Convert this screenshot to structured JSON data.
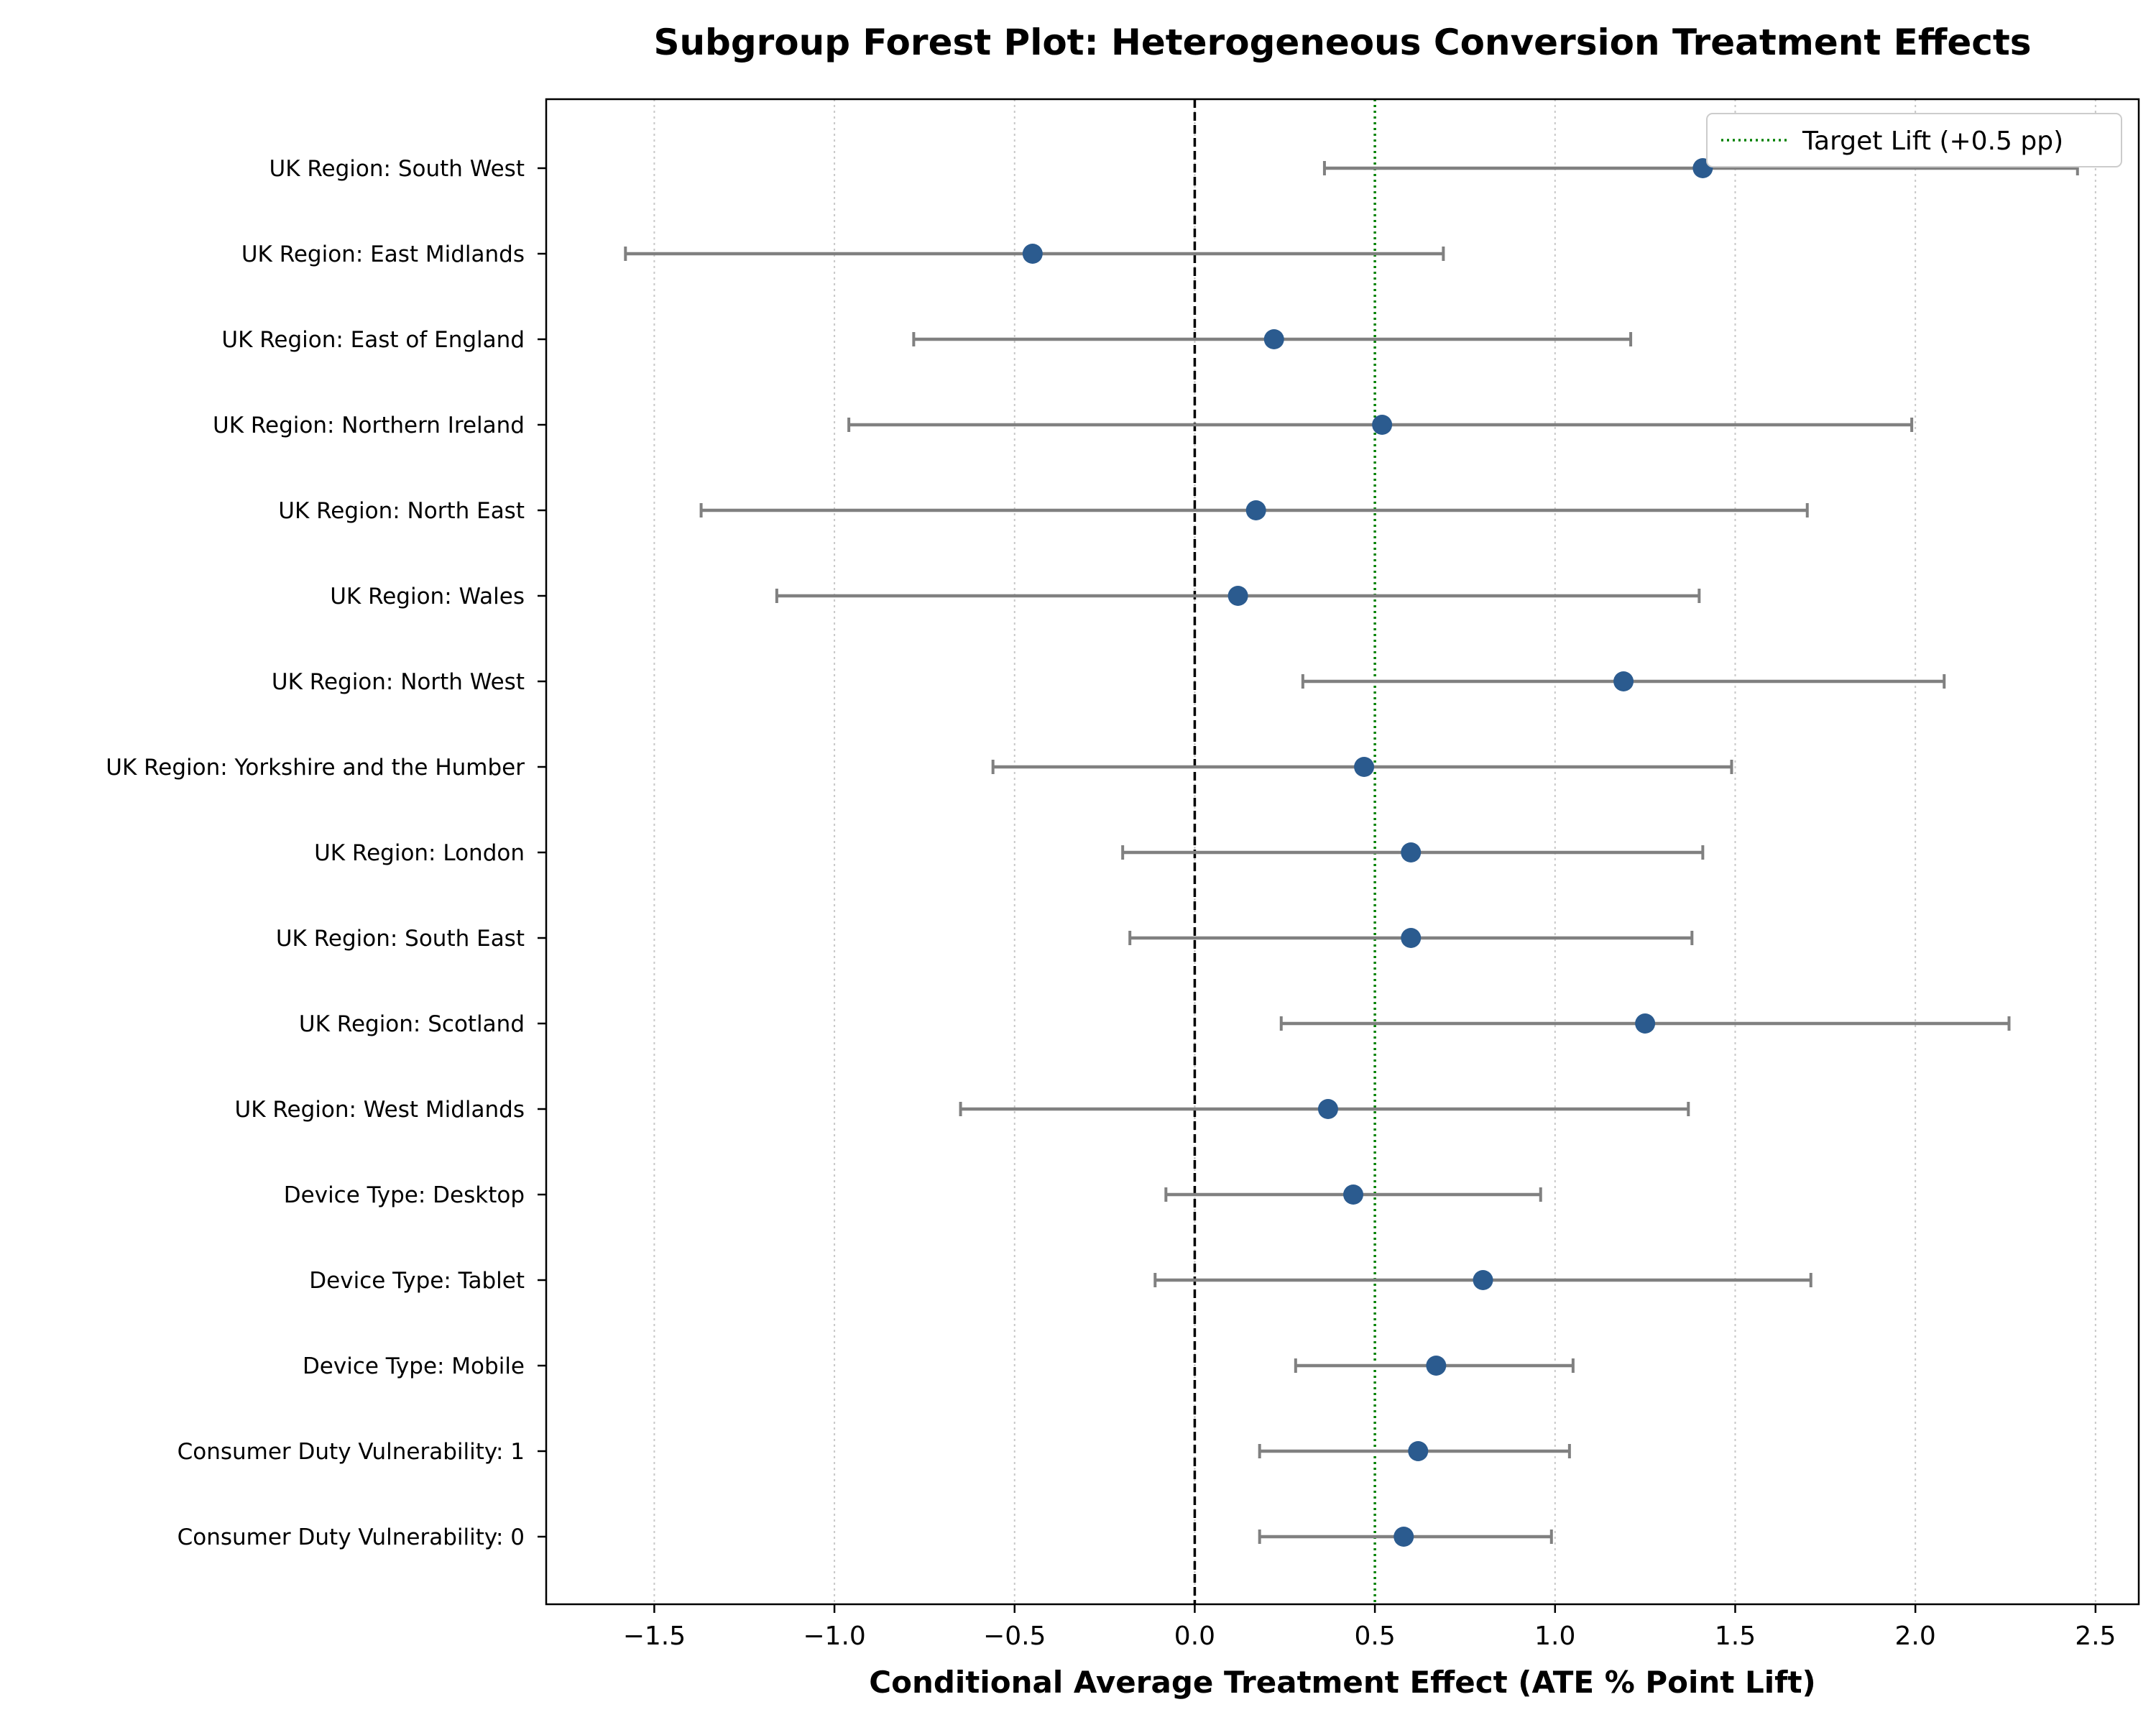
{
  "chart_data": {
    "type": "forest",
    "title": "Subgroup Forest Plot: Heterogeneous Conversion Treatment Effects",
    "xlabel": "Conditional Average Treatment Effect (ATE % Point Lift)",
    "ylabel": "",
    "xlim": [
      -1.8,
      2.62
    ],
    "xticks": [
      -1.5,
      -1.0,
      -0.5,
      0.0,
      0.5,
      1.0,
      1.5,
      2.0,
      2.5
    ],
    "xtick_labels": [
      "−1.5",
      "−1.0",
      "−0.5",
      "0.0",
      "0.5",
      "1.0",
      "1.5",
      "2.0",
      "2.5"
    ],
    "grid": "vertical dotted",
    "zero_line": 0.0,
    "target_line": {
      "value": 0.5,
      "label": "Target Lift (+0.5 pp)",
      "color": "#008000"
    },
    "legend_position": "top-right",
    "point_color": "#2b5b8f",
    "ci_color": "#808080",
    "subgroups": [
      {
        "label": "UK Region: South West",
        "estimate": 1.41,
        "ci_low": 0.36,
        "ci_high": 2.45
      },
      {
        "label": "UK Region: East Midlands",
        "estimate": -0.45,
        "ci_low": -1.58,
        "ci_high": 0.69
      },
      {
        "label": "UK Region: East of England",
        "estimate": 0.22,
        "ci_low": -0.78,
        "ci_high": 1.21
      },
      {
        "label": "UK Region: Northern Ireland",
        "estimate": 0.52,
        "ci_low": -0.96,
        "ci_high": 1.99
      },
      {
        "label": "UK Region: North East",
        "estimate": 0.17,
        "ci_low": -1.37,
        "ci_high": 1.7
      },
      {
        "label": "UK Region: Wales",
        "estimate": 0.12,
        "ci_low": -1.16,
        "ci_high": 1.4
      },
      {
        "label": "UK Region: North West",
        "estimate": 1.19,
        "ci_low": 0.3,
        "ci_high": 2.08
      },
      {
        "label": "UK Region: Yorkshire and the Humber",
        "estimate": 0.47,
        "ci_low": -0.56,
        "ci_high": 1.49
      },
      {
        "label": "UK Region: London",
        "estimate": 0.6,
        "ci_low": -0.2,
        "ci_high": 1.41
      },
      {
        "label": "UK Region: South East",
        "estimate": 0.6,
        "ci_low": -0.18,
        "ci_high": 1.38
      },
      {
        "label": "UK Region: Scotland",
        "estimate": 1.25,
        "ci_low": 0.24,
        "ci_high": 2.26
      },
      {
        "label": "UK Region: West Midlands",
        "estimate": 0.37,
        "ci_low": -0.65,
        "ci_high": 1.37
      },
      {
        "label": "Device Type: Desktop",
        "estimate": 0.44,
        "ci_low": -0.08,
        "ci_high": 0.96
      },
      {
        "label": "Device Type: Tablet",
        "estimate": 0.8,
        "ci_low": -0.11,
        "ci_high": 1.71
      },
      {
        "label": "Device Type: Mobile",
        "estimate": 0.67,
        "ci_low": 0.28,
        "ci_high": 1.05
      },
      {
        "label": "Consumer Duty Vulnerability: 1",
        "estimate": 0.62,
        "ci_low": 0.18,
        "ci_high": 1.04
      },
      {
        "label": "Consumer Duty Vulnerability: 0",
        "estimate": 0.58,
        "ci_low": 0.18,
        "ci_high": 0.99
      }
    ]
  }
}
